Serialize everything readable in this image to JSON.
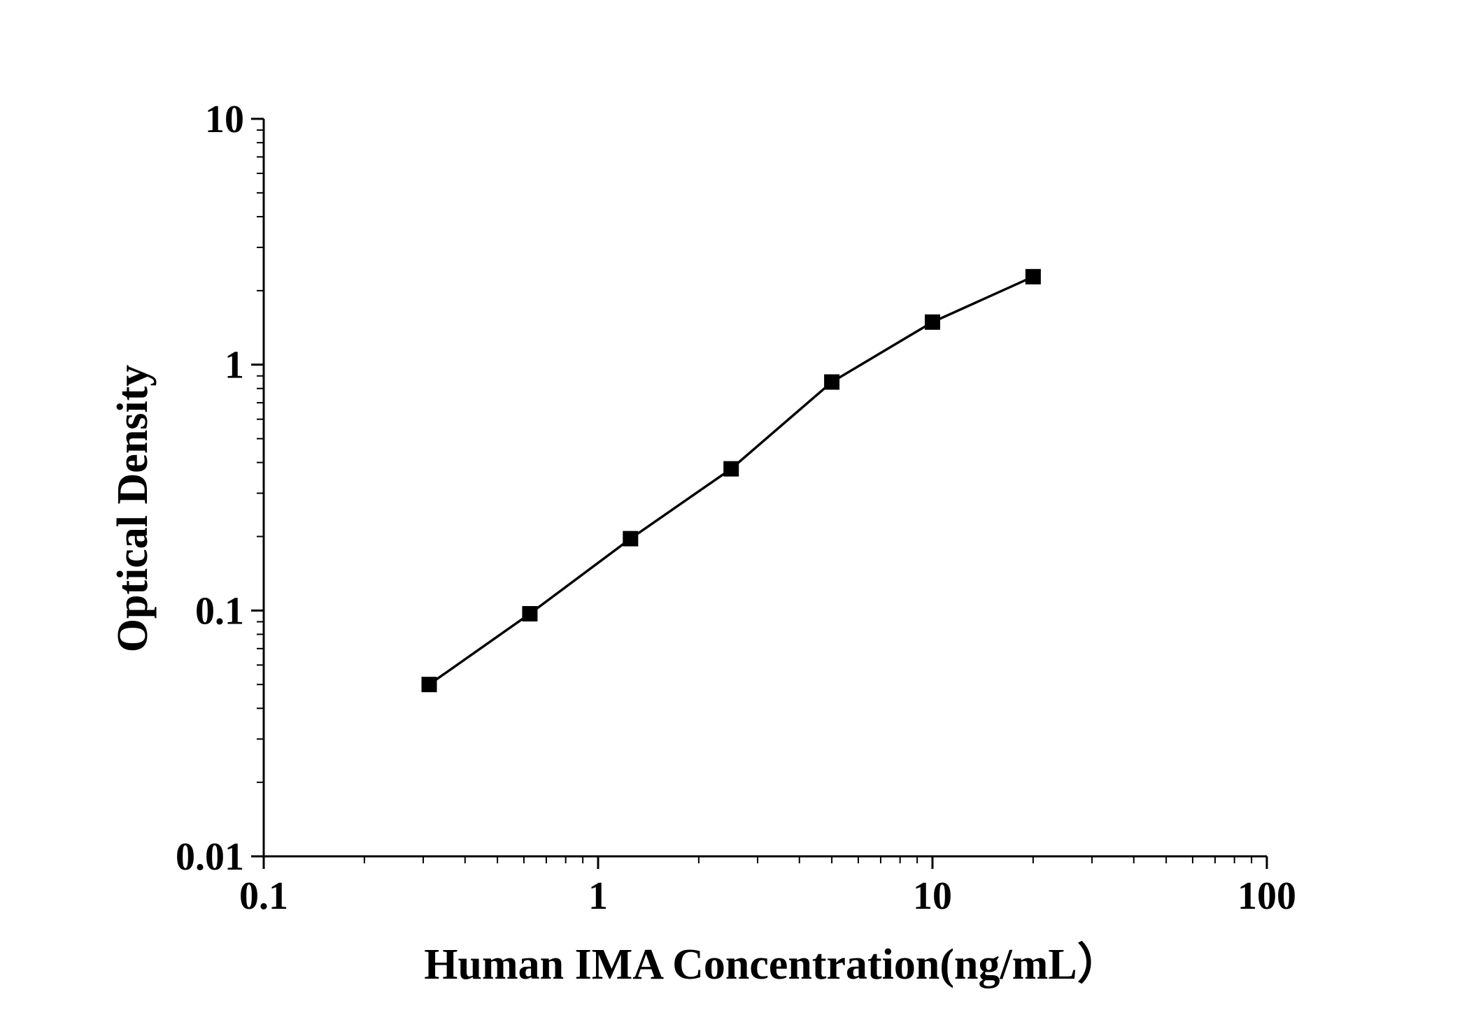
{
  "chart_data": {
    "type": "line",
    "title": "",
    "xlabel": "Human IMA  Concentration(ng/mL）",
    "ylabel": "Optical Density",
    "xscale": "log",
    "yscale": "log",
    "xlim": [
      0.1,
      100
    ],
    "ylim": [
      0.01,
      10
    ],
    "xticks": [
      "0.1",
      "1",
      "10",
      "100"
    ],
    "yticks": [
      "0.01",
      "0.1",
      "1",
      "10"
    ],
    "grid": false,
    "legend": "none",
    "series": [
      {
        "marker": "square",
        "color": "#000000",
        "x": [
          0.3125,
          0.625,
          1.25,
          2.5,
          5,
          10,
          20
        ],
        "y": [
          0.05,
          0.097,
          0.196,
          0.377,
          0.85,
          1.49,
          2.28
        ]
      }
    ]
  }
}
